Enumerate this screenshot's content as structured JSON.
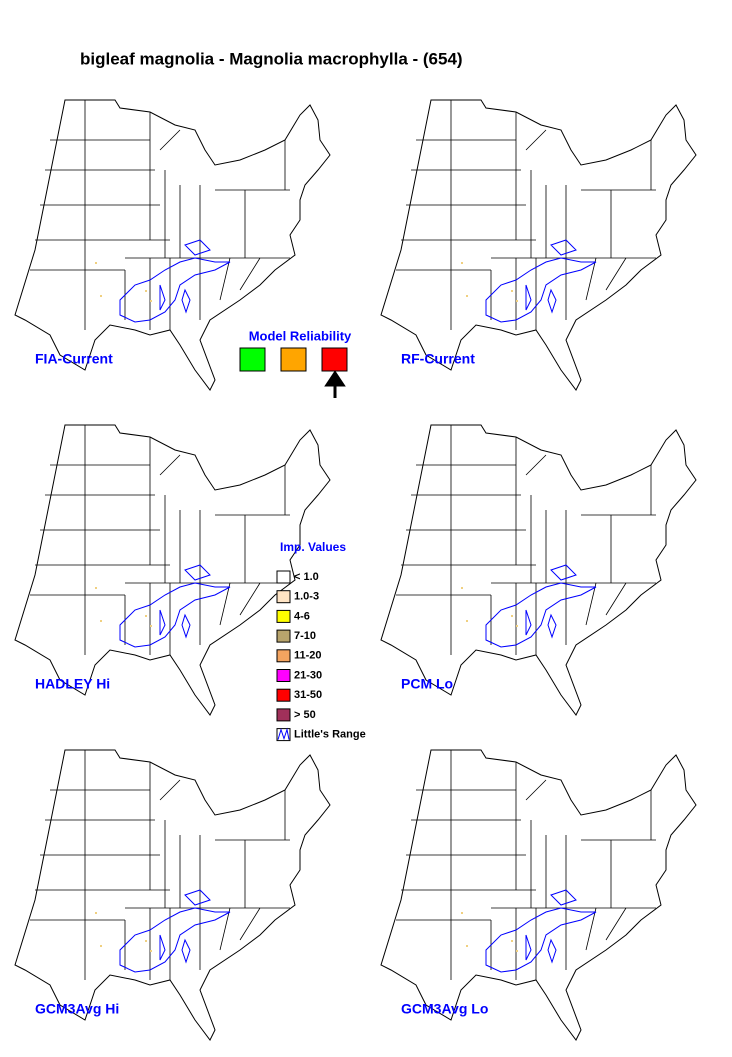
{
  "title": "bigleaf magnolia - Magnolia macrophylla - (654)",
  "maps": [
    {
      "label": "FIA-Current"
    },
    {
      "label": "RF-Current"
    },
    {
      "label": "HADLEY Hi"
    },
    {
      "label": "PCM Lo"
    },
    {
      "label": "GCM3Avg Hi"
    },
    {
      "label": "GCM3Avg Lo"
    }
  ],
  "model_reliability": {
    "title": "Model Reliability",
    "colors": [
      "#00ff00",
      "#ffa500",
      "#ff0000"
    ]
  },
  "imp_values": {
    "title": "Imp. Values",
    "items": [
      {
        "label": "< 1.0",
        "color": "#ffffff"
      },
      {
        "label": "1.0-3",
        "color": "#ffe4c4"
      },
      {
        "label": "4-6",
        "color": "#ffff00"
      },
      {
        "label": "7-10",
        "color": "#b8a46c"
      },
      {
        "label": "11-20",
        "color": "#f4a460"
      },
      {
        "label": "21-30",
        "color": "#ff00ff"
      },
      {
        "label": "31-50",
        "color": "#ff0000"
      },
      {
        "label": "> 50",
        "color": "#a0305a"
      }
    ],
    "range_label": "Little's Range"
  }
}
